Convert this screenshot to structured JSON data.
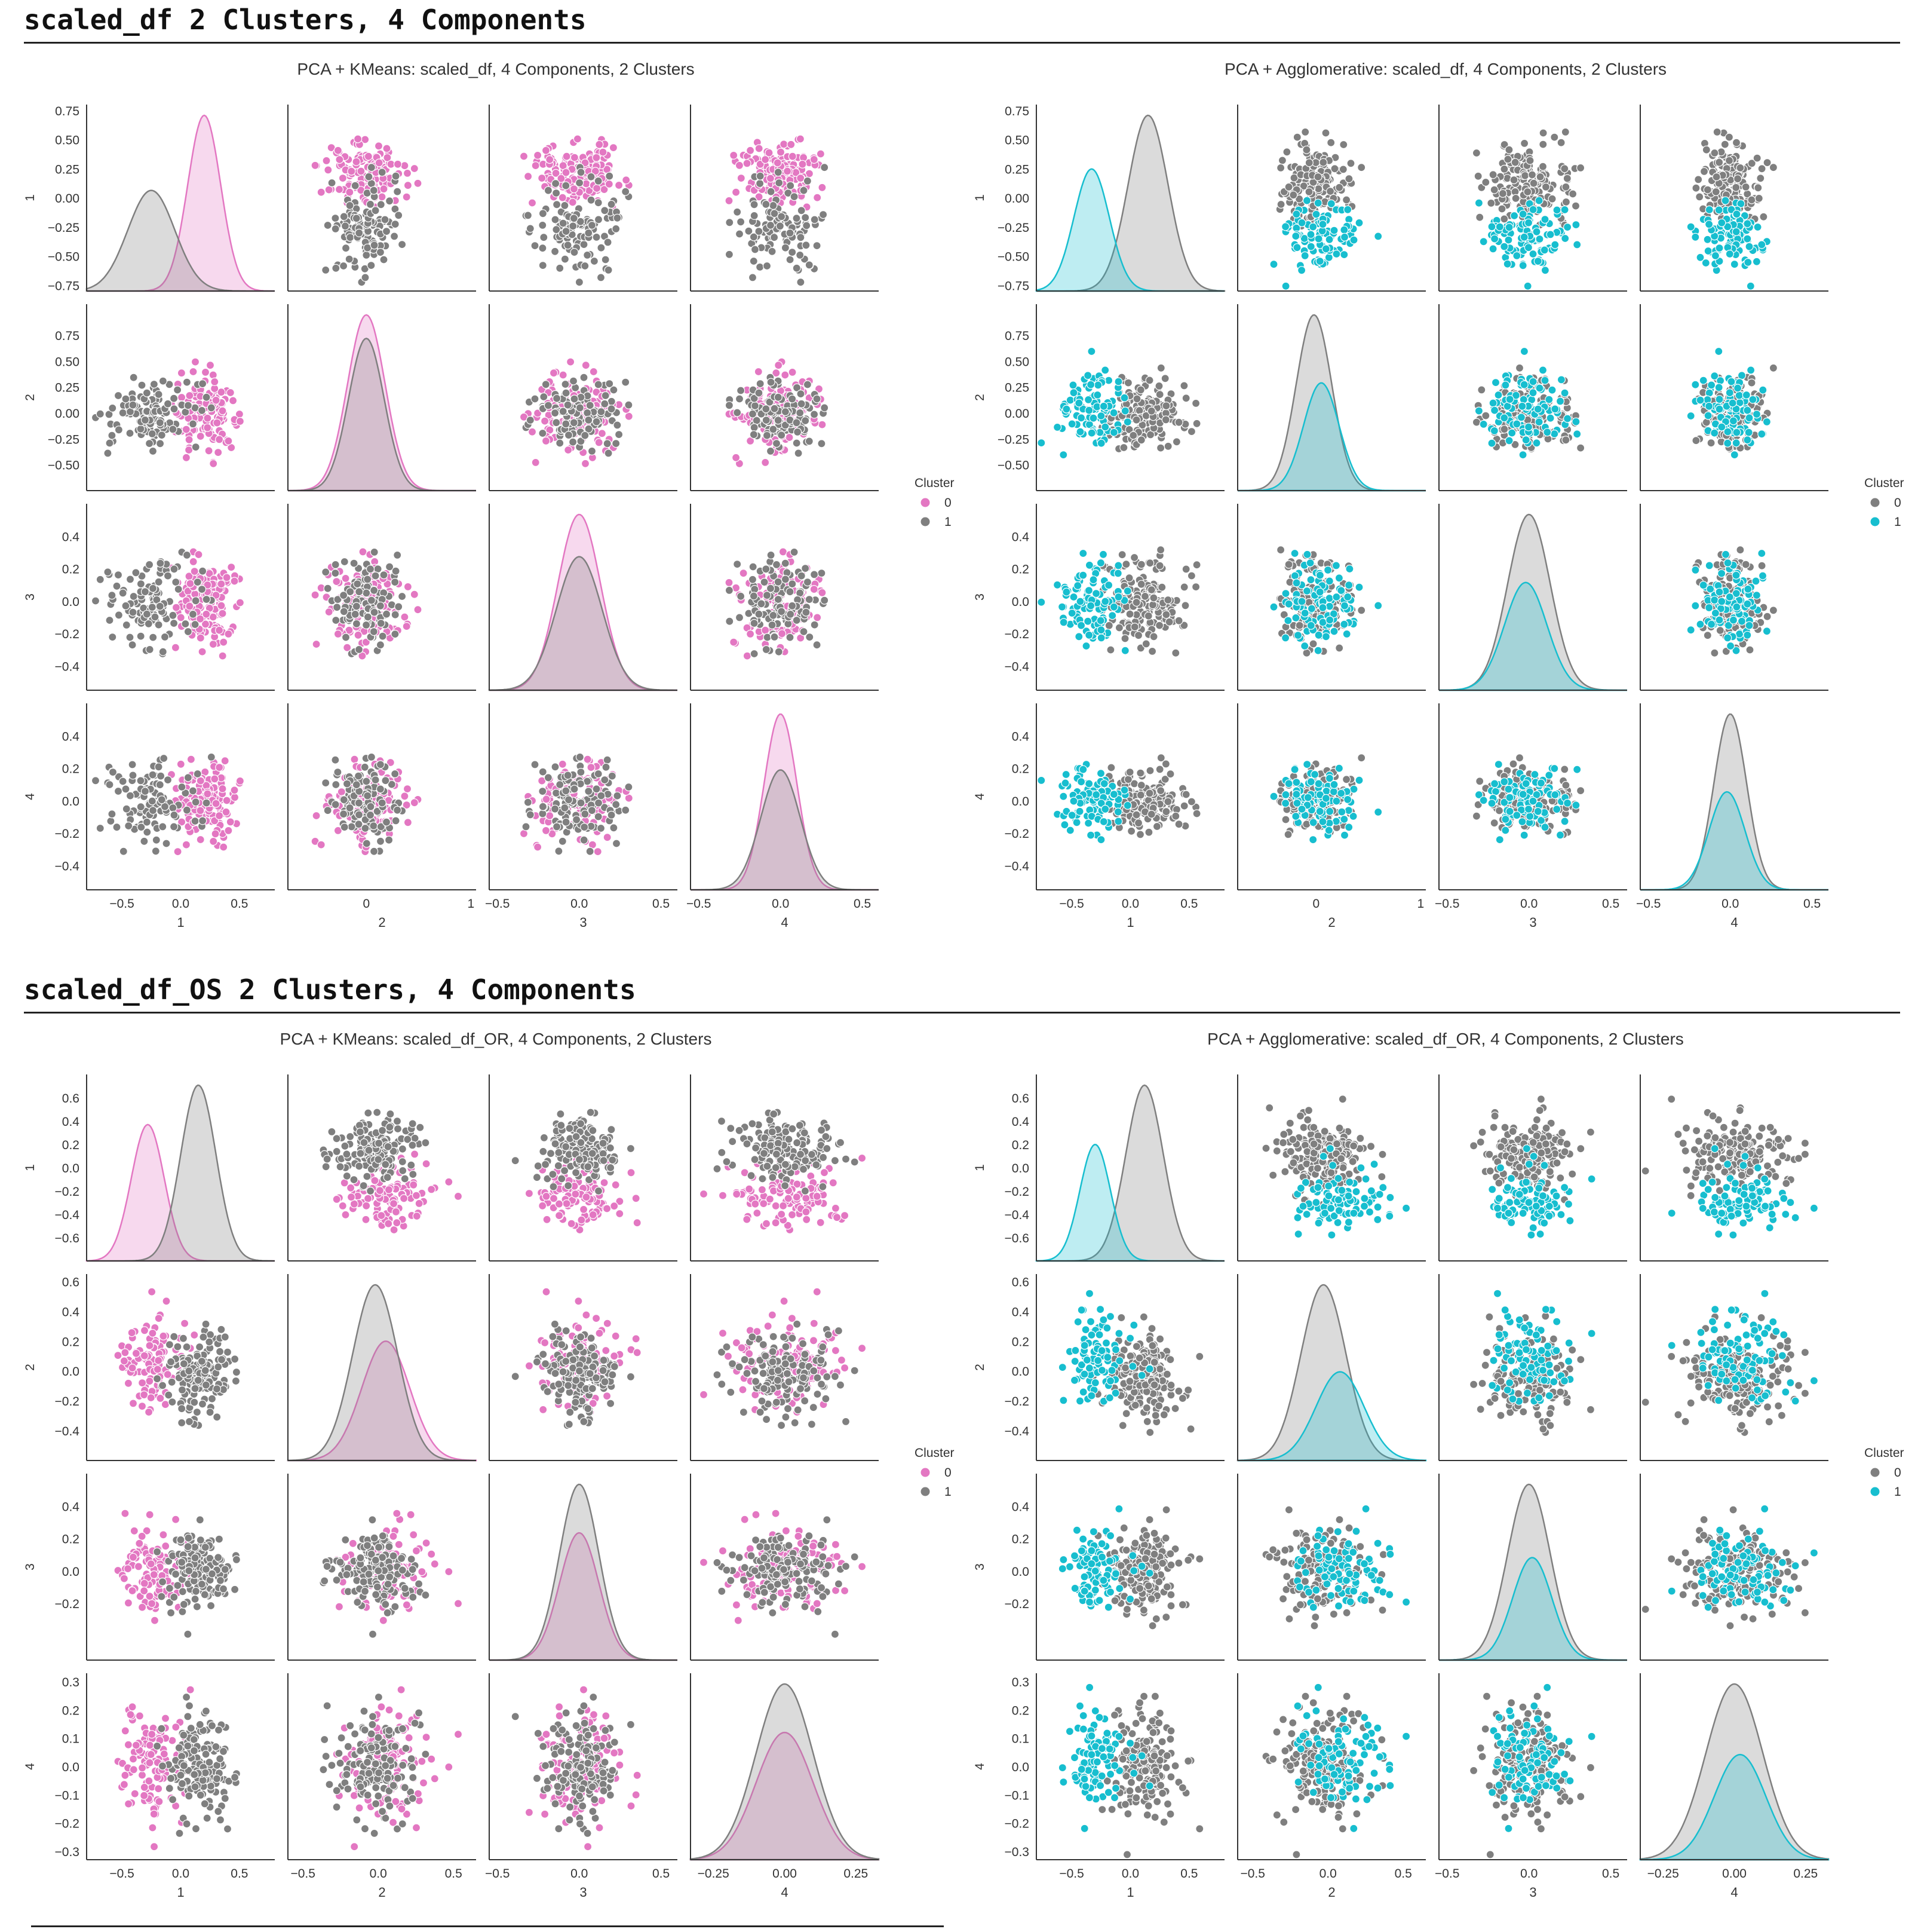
{
  "sections": [
    {
      "title": "scaled_df 2 Clusters, 4 Components"
    },
    {
      "title": "scaled_df_OS 2 Clusters, 4 Components"
    }
  ],
  "chart_data": [
    {
      "type": "pairplot",
      "title": "PCA + KMeans: scaled_df, 4 Components, 2 Clusters",
      "variables": [
        "1",
        "2",
        "3",
        "4"
      ],
      "legend": {
        "title": "Cluster",
        "labels": [
          "0",
          "1"
        ],
        "placement": "right"
      },
      "series": [
        {
          "name": "0",
          "color": "#e377c2",
          "mean": [
            0.2,
            0.0,
            0.0,
            0.0
          ],
          "sd": [
            0.14,
            0.18,
            0.13,
            0.1
          ],
          "weight": 0.55
        },
        {
          "name": "1",
          "color": "#7f7f7f",
          "mean": [
            -0.25,
            0.0,
            0.0,
            0.0
          ],
          "sd": [
            0.2,
            0.17,
            0.14,
            0.12
          ],
          "weight": 0.45
        }
      ],
      "axes": [
        {
          "range": [
            -0.8,
            0.8
          ],
          "ticks": [
            -0.75,
            -0.5,
            -0.25,
            0.0,
            0.25,
            0.5,
            0.75
          ],
          "tick_labels": [
            "−0.75",
            "−0.50",
            "−0.25",
            "0.00",
            "0.25",
            "0.50",
            "0.75"
          ],
          "x_ticks": [
            -0.5,
            0.0,
            0.5
          ],
          "x_tick_labels": [
            "−0.5",
            "0.0",
            "0.5"
          ]
        },
        {
          "range": [
            -0.75,
            1.05
          ],
          "ticks": [
            -0.5,
            -0.25,
            0.0,
            0.25,
            0.5,
            0.75
          ],
          "tick_labels": [
            "−0.50",
            "−0.25",
            "0.00",
            "0.25",
            "0.50",
            "0.75"
          ],
          "x_ticks": [
            0,
            1
          ],
          "x_tick_labels": [
            "0",
            "1"
          ]
        },
        {
          "range": [
            -0.55,
            0.6
          ],
          "ticks": [
            -0.4,
            -0.2,
            0.0,
            0.2,
            0.4
          ],
          "tick_labels": [
            "−0.4",
            "−0.2",
            "0.0",
            "0.2",
            "0.4"
          ],
          "x_ticks": [
            -0.5,
            0.0,
            0.5
          ],
          "x_tick_labels": [
            "−0.5",
            "0.0",
            "0.5"
          ]
        },
        {
          "range": [
            -0.55,
            0.6
          ],
          "ticks": [
            -0.4,
            -0.2,
            0.0,
            0.2,
            0.4
          ],
          "tick_labels": [
            "−0.4",
            "−0.2",
            "0.0",
            "0.2",
            "0.4"
          ],
          "x_ticks": [
            -0.5,
            0.0,
            0.5
          ],
          "x_tick_labels": [
            "−0.5",
            "0.0",
            "0.5"
          ]
        }
      ]
    },
    {
      "type": "pairplot",
      "title": "PCA + Agglomerative: scaled_df, 4 Components, 2 Clusters",
      "variables": [
        "1",
        "2",
        "3",
        "4"
      ],
      "legend": {
        "title": "Cluster",
        "labels": [
          "0",
          "1"
        ],
        "placement": "right"
      },
      "series": [
        {
          "name": "0",
          "color": "#7f7f7f",
          "mean": [
            0.15,
            -0.02,
            0.0,
            0.0
          ],
          "sd": [
            0.17,
            0.17,
            0.13,
            0.1
          ],
          "weight": 0.62
        },
        {
          "name": "1",
          "color": "#17becf",
          "mean": [
            -0.33,
            0.05,
            -0.02,
            -0.02
          ],
          "sd": [
            0.15,
            0.17,
            0.13,
            0.11
          ],
          "weight": 0.38
        }
      ],
      "axes": [
        {
          "range": [
            -0.8,
            0.8
          ],
          "ticks": [
            -0.75,
            -0.5,
            -0.25,
            0.0,
            0.25,
            0.5,
            0.75
          ],
          "tick_labels": [
            "−0.75",
            "−0.50",
            "−0.25",
            "0.00",
            "0.25",
            "0.50",
            "0.75"
          ],
          "x_ticks": [
            -0.5,
            0.0,
            0.5
          ],
          "x_tick_labels": [
            "−0.5",
            "0.0",
            "0.5"
          ]
        },
        {
          "range": [
            -0.75,
            1.05
          ],
          "ticks": [
            -0.5,
            -0.25,
            0.0,
            0.25,
            0.5,
            0.75
          ],
          "tick_labels": [
            "−0.50",
            "−0.25",
            "0.00",
            "0.25",
            "0.50",
            "0.75"
          ],
          "x_ticks": [
            0,
            1
          ],
          "x_tick_labels": [
            "0",
            "1"
          ]
        },
        {
          "range": [
            -0.55,
            0.6
          ],
          "ticks": [
            -0.4,
            -0.2,
            0.0,
            0.2,
            0.4
          ],
          "tick_labels": [
            "−0.4",
            "−0.2",
            "0.0",
            "0.2",
            "0.4"
          ],
          "x_ticks": [
            -0.5,
            0.0,
            0.5
          ],
          "x_tick_labels": [
            "−0.5",
            "0.0",
            "0.5"
          ]
        },
        {
          "range": [
            -0.55,
            0.6
          ],
          "ticks": [
            -0.4,
            -0.2,
            0.0,
            0.2,
            0.4
          ],
          "tick_labels": [
            "−0.4",
            "−0.2",
            "0.0",
            "0.2",
            "0.4"
          ],
          "x_ticks": [
            -0.5,
            0.0,
            0.5
          ],
          "x_tick_labels": [
            "−0.5",
            "0.0",
            "0.5"
          ]
        }
      ]
    },
    {
      "type": "pairplot",
      "title": "PCA + KMeans: scaled_df_OR, 4 Components, 2 Clusters",
      "variables": [
        "1",
        "2",
        "3",
        "4"
      ],
      "legend": {
        "title": "Cluster",
        "labels": [
          "0",
          "1"
        ],
        "placement": "right"
      },
      "series": [
        {
          "name": "0",
          "color": "#e377c2",
          "mean": [
            -0.28,
            0.05,
            0.0,
            0.0
          ],
          "sd": [
            0.14,
            0.16,
            0.12,
            0.1
          ],
          "weight": 0.42
        },
        {
          "name": "1",
          "color": "#7f7f7f",
          "mean": [
            0.15,
            -0.02,
            0.0,
            0.0
          ],
          "sd": [
            0.15,
            0.15,
            0.12,
            0.1
          ],
          "weight": 0.58
        }
      ],
      "axes": [
        {
          "range": [
            -0.8,
            0.8
          ],
          "ticks": [
            -0.6,
            -0.4,
            -0.2,
            0.0,
            0.2,
            0.4,
            0.6
          ],
          "tick_labels": [
            "−0.6",
            "−0.4",
            "−0.2",
            "0.0",
            "0.2",
            "0.4",
            "0.6"
          ],
          "x_ticks": [
            -0.5,
            0.0,
            0.5
          ],
          "x_tick_labels": [
            "−0.5",
            "0.0",
            "0.5"
          ]
        },
        {
          "range": [
            -0.6,
            0.65
          ],
          "ticks": [
            -0.4,
            -0.2,
            0.0,
            0.2,
            0.4,
            0.6
          ],
          "tick_labels": [
            "−0.4",
            "−0.2",
            "0.0",
            "0.2",
            "0.4",
            "0.6"
          ],
          "x_ticks": [
            -0.5,
            0.0,
            0.5
          ],
          "x_tick_labels": [
            "−0.5",
            "0.0",
            "0.5"
          ]
        },
        {
          "range": [
            -0.55,
            0.6
          ],
          "ticks": [
            -0.2,
            0.0,
            0.2,
            0.4
          ],
          "tick_labels": [
            "−0.2",
            "0.0",
            "0.2",
            "0.4"
          ],
          "x_ticks": [
            -0.5,
            0.0,
            0.5
          ],
          "x_tick_labels": [
            "−0.5",
            "0.0",
            "0.5"
          ]
        },
        {
          "range": [
            -0.33,
            0.33
          ],
          "ticks": [
            -0.3,
            -0.2,
            -0.1,
            0.0,
            0.1,
            0.2,
            0.3
          ],
          "tick_labels": [
            "−0.3",
            "−0.2",
            "−0.1",
            "0.0",
            "0.1",
            "0.2",
            "0.3"
          ],
          "x_ticks": [
            -0.25,
            0.0,
            0.25
          ],
          "x_tick_labels": [
            "−0.25",
            "0.00",
            "0.25"
          ]
        }
      ]
    },
    {
      "type": "pairplot",
      "title": "PCA + Agglomerative: scaled_df_OR, 4 Components, 2 Clusters",
      "variables": [
        "1",
        "2",
        "3",
        "4"
      ],
      "legend": {
        "title": "Cluster",
        "labels": [
          "0",
          "1"
        ],
        "placement": "right"
      },
      "series": [
        {
          "name": "0",
          "color": "#7f7f7f",
          "mean": [
            0.12,
            -0.03,
            0.0,
            0.0
          ],
          "sd": [
            0.16,
            0.15,
            0.13,
            0.1
          ],
          "weight": 0.65
        },
        {
          "name": "1",
          "color": "#17becf",
          "mean": [
            -0.3,
            0.08,
            0.02,
            0.02
          ],
          "sd": [
            0.13,
            0.16,
            0.12,
            0.09
          ],
          "weight": 0.35
        }
      ],
      "axes": [
        {
          "range": [
            -0.8,
            0.8
          ],
          "ticks": [
            -0.6,
            -0.4,
            -0.2,
            0.0,
            0.2,
            0.4,
            0.6
          ],
          "tick_labels": [
            "−0.6",
            "−0.4",
            "−0.2",
            "0.0",
            "0.2",
            "0.4",
            "0.6"
          ],
          "x_ticks": [
            -0.5,
            0.0,
            0.5
          ],
          "x_tick_labels": [
            "−0.5",
            "0.0",
            "0.5"
          ]
        },
        {
          "range": [
            -0.6,
            0.65
          ],
          "ticks": [
            -0.4,
            -0.2,
            0.0,
            0.2,
            0.4,
            0.6
          ],
          "tick_labels": [
            "−0.4",
            "−0.2",
            "0.0",
            "0.2",
            "0.4",
            "0.6"
          ],
          "x_ticks": [
            -0.5,
            0.0,
            0.5
          ],
          "x_tick_labels": [
            "−0.5",
            "0.0",
            "0.5"
          ]
        },
        {
          "range": [
            -0.55,
            0.6
          ],
          "ticks": [
            -0.2,
            0.0,
            0.2,
            0.4
          ],
          "tick_labels": [
            "−0.2",
            "0.0",
            "0.2",
            "0.4"
          ],
          "x_ticks": [
            -0.5,
            0.0,
            0.5
          ],
          "x_tick_labels": [
            "−0.5",
            "0.0",
            "0.5"
          ]
        },
        {
          "range": [
            -0.33,
            0.33
          ],
          "ticks": [
            -0.3,
            -0.2,
            -0.1,
            0.0,
            0.1,
            0.2,
            0.3
          ],
          "tick_labels": [
            "−0.3",
            "−0.2",
            "−0.1",
            "0.0",
            "0.1",
            "0.2",
            "0.3"
          ],
          "x_ticks": [
            -0.25,
            0.0,
            0.25
          ],
          "x_tick_labels": [
            "−0.25",
            "0.00",
            "0.25"
          ]
        }
      ]
    }
  ]
}
